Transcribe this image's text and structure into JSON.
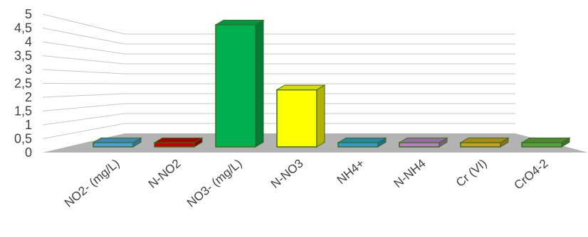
{
  "chart_data": {
    "type": "bar",
    "title": "",
    "xlabel": "",
    "ylabel": "",
    "ylim": [
      0,
      5
    ],
    "y_ticks": [
      "0",
      "0,5",
      "1",
      "1,5",
      "2",
      "2,5",
      "3",
      "3,5",
      "4",
      "4,5",
      "5"
    ],
    "y_tick_values": [
      0,
      0.5,
      1,
      1.5,
      2,
      2.5,
      3,
      3.5,
      4,
      4.5,
      5
    ],
    "categories": [
      "NO2- (mg/L)",
      "N-NO2",
      "NO3- (mg/L)",
      "N-NO3",
      "NH4+",
      "N-NH4",
      "Cr (VI)",
      "CrO4-2"
    ],
    "values": [
      0.16,
      0.04,
      4.6,
      2.15,
      0.02,
      0.02,
      0.02,
      0.02
    ],
    "bar_colors": [
      "#4a9fd8",
      "#c00000",
      "#00b050",
      "#ffff00",
      "#2f9bc8",
      "#b380c0",
      "#c8a020",
      "#5aa040"
    ],
    "grid": true,
    "legend": "none",
    "style": "3d-perspective"
  }
}
